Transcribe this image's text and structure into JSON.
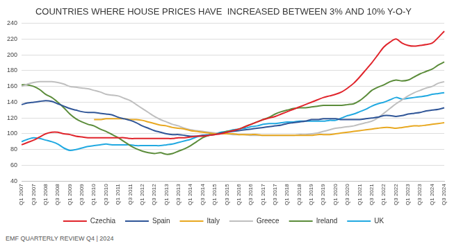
{
  "chart_data": {
    "type": "line",
    "title": "COUNTRIES WHERE HOUSE PRICES HAVE  INCREASED BETWEEN 3% AND 10% Y-O-Y",
    "footer": "EMF QUARTERLY REVIEW Q4 | 2024",
    "categories": [
      "Q1 2007",
      null,
      "Q3 2007",
      null,
      "Q1 2008",
      null,
      "Q3 2008",
      null,
      "Q1 2009",
      null,
      "Q3 2009",
      null,
      "Q1 2010",
      null,
      "Q3 2010",
      null,
      "Q1 2011",
      null,
      "Q3 2011",
      null,
      "Q1 2012",
      null,
      "Q3 2012",
      null,
      "Q1 2013",
      null,
      "Q3 2013",
      null,
      "Q1 2014",
      null,
      "Q3 2014",
      null,
      "Q1 2015",
      null,
      "Q3 2015",
      null,
      "Q1 2016",
      null,
      "Q3 2016",
      null,
      "Q1 2017",
      null,
      "Q3 2017",
      null,
      "Q1 2018",
      null,
      "Q3 2018",
      null,
      "Q1 2019",
      null,
      "Q3 2019",
      null,
      "Q1 2020",
      null,
      "Q3 2020",
      null,
      "Q1 2021",
      null,
      "Q3 2021",
      null,
      "Q1 2022",
      null,
      "Q3 2022",
      null,
      "Q1 2023",
      null,
      "Q3 2023",
      null,
      "Q1 2024",
      null,
      "Q3 2024"
    ],
    "series": [
      {
        "name": "Czechia",
        "color": "#e0242b",
        "values": [
          86,
          89,
          92,
          96,
          100,
          102,
          102,
          100,
          99,
          97,
          96,
          95,
          95,
          95,
          95,
          95,
          95,
          95,
          94,
          94,
          94,
          94,
          94,
          94,
          94,
          94,
          95,
          95,
          96,
          97,
          97,
          98,
          99,
          100,
          102,
          104,
          106,
          109,
          112,
          115,
          118,
          120,
          122,
          125,
          128,
          131,
          134,
          137,
          140,
          143,
          146,
          148,
          150,
          153,
          158,
          164,
          172,
          181,
          190,
          200,
          210,
          216,
          220,
          215,
          212,
          211,
          212,
          213,
          215,
          222,
          230
        ]
      },
      {
        "name": "Spain",
        "color": "#2f5597",
        "values": [
          137,
          139,
          140,
          141,
          142,
          141,
          138,
          135,
          132,
          130,
          128,
          127,
          127,
          126,
          125,
          124,
          121,
          119,
          117,
          114,
          110,
          107,
          104,
          102,
          100,
          99,
          99,
          98,
          97,
          97,
          98,
          98,
          99,
          101,
          102,
          103,
          104,
          105,
          106,
          107,
          108,
          109,
          110,
          111,
          113,
          114,
          115,
          116,
          118,
          118,
          119,
          119,
          119,
          118,
          118,
          118,
          118,
          119,
          120,
          121,
          123,
          123,
          122,
          123,
          125,
          126,
          127,
          129,
          130,
          131,
          133
        ]
      },
      {
        "name": "Italy",
        "color": "#e8a820",
        "values": [
          null,
          null,
          null,
          null,
          null,
          null,
          null,
          null,
          null,
          null,
          null,
          null,
          118,
          118,
          119,
          119,
          119,
          119,
          118,
          118,
          117,
          115,
          113,
          111,
          110,
          108,
          107,
          106,
          104,
          103,
          102,
          101,
          100,
          100,
          100,
          100,
          99,
          99,
          99,
          99,
          98,
          98,
          98,
          98,
          98,
          98,
          98,
          98,
          98,
          99,
          99,
          99,
          100,
          101,
          102,
          103,
          104,
          105,
          106,
          107,
          108,
          108,
          107,
          108,
          109,
          110,
          110,
          111,
          112,
          113,
          114
        ]
      },
      {
        "name": "Greece",
        "color": "#bfbfbf",
        "values": [
          160,
          163,
          165,
          166,
          166,
          166,
          165,
          163,
          160,
          159,
          158,
          157,
          155,
          153,
          150,
          149,
          148,
          145,
          142,
          137,
          132,
          127,
          122,
          118,
          115,
          112,
          110,
          107,
          105,
          104,
          103,
          102,
          101,
          100,
          100,
          99,
          99,
          99,
          98,
          98,
          98,
          98,
          98,
          98,
          98,
          98,
          99,
          99,
          100,
          101,
          103,
          105,
          107,
          108,
          109,
          110,
          112,
          114,
          116,
          120,
          126,
          132,
          138,
          143,
          148,
          152,
          155,
          158,
          160,
          164,
          166
        ]
      },
      {
        "name": "Ireland",
        "color": "#5b8c3a",
        "values": [
          162,
          162,
          160,
          156,
          150,
          146,
          140,
          133,
          125,
          119,
          115,
          112,
          110,
          106,
          103,
          99,
          95,
          90,
          85,
          81,
          78,
          76,
          75,
          76,
          74,
          75,
          78,
          81,
          85,
          90,
          95,
          98,
          100,
          101,
          103,
          104,
          106,
          109,
          112,
          115,
          118,
          121,
          125,
          128,
          130,
          132,
          133,
          133,
          134,
          135,
          136,
          136,
          136,
          136,
          137,
          138,
          142,
          148,
          155,
          159,
          162,
          166,
          168,
          167,
          168,
          172,
          176,
          179,
          182,
          187,
          191
        ]
      },
      {
        "name": "UK",
        "color": "#21a9e1",
        "values": [
          90,
          93,
          95,
          94,
          92,
          90,
          87,
          82,
          79,
          80,
          82,
          84,
          85,
          86,
          87,
          86,
          86,
          86,
          86,
          85,
          85,
          85,
          85,
          85,
          86,
          87,
          89,
          91,
          93,
          96,
          98,
          99,
          100,
          102,
          103,
          105,
          106,
          107,
          109,
          110,
          112,
          113,
          113,
          114,
          115,
          115,
          116,
          116,
          116,
          116,
          116,
          117,
          117,
          120,
          123,
          125,
          128,
          131,
          135,
          138,
          140,
          143,
          146,
          144,
          145,
          146,
          147,
          148,
          150,
          151,
          152
        ]
      }
    ],
    "ylim": [
      40,
      240
    ],
    "yticks": [
      40,
      60,
      80,
      100,
      120,
      140,
      160,
      180,
      200,
      220,
      240
    ],
    "grid": "y",
    "legend": "bottom"
  }
}
